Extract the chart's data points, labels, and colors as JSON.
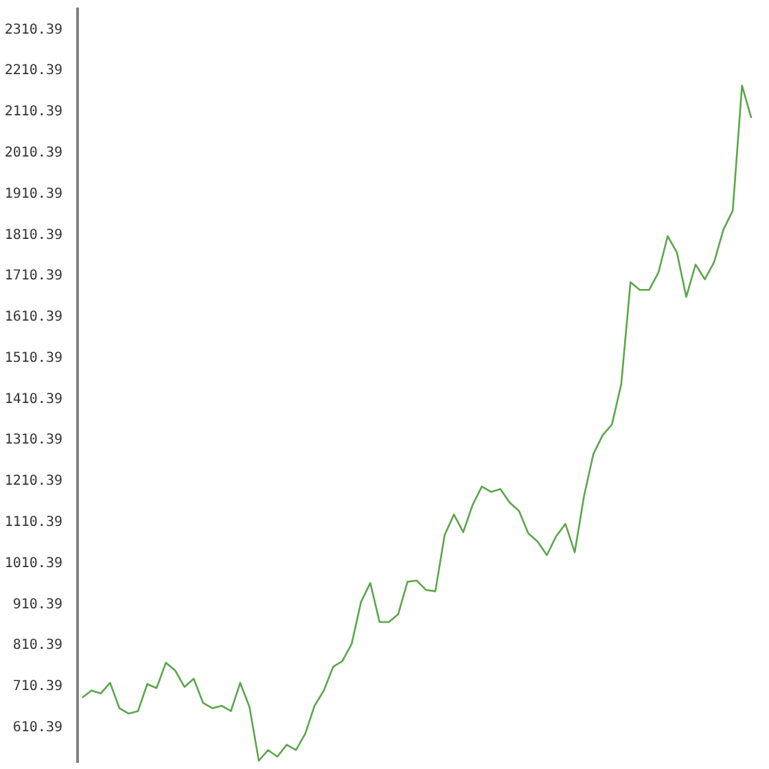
{
  "chart_data": {
    "type": "line",
    "categories": [
      null,
      null,
      null,
      null,
      null,
      null,
      null,
      null,
      null,
      null,
      null,
      null,
      null,
      null,
      null,
      null,
      null,
      null,
      null,
      null,
      null,
      null,
      null,
      null,
      null,
      null,
      null,
      null,
      null,
      null,
      null,
      null,
      null,
      null,
      null,
      null,
      null,
      null,
      null,
      null,
      null,
      null,
      null,
      null,
      null,
      null,
      null,
      null,
      null,
      null,
      null,
      null,
      null,
      null,
      null,
      null,
      null,
      null,
      null,
      null,
      null,
      null,
      null,
      null,
      null,
      null,
      null,
      null,
      null,
      null,
      null,
      null,
      null
    ],
    "series": [
      {
        "color": "#5aa64a",
        "values": [
          679,
          696,
          689,
          715,
          653,
          640,
          646,
          712,
          702,
          764,
          745,
          705,
          725,
          666,
          653,
          659,
          646,
          715,
          656,
          525,
          551,
          535,
          564,
          551,
          591,
          659,
          696,
          754,
          768,
          810,
          912,
          958,
          863,
          863,
          882,
          961,
          964,
          941,
          938,
          1075,
          1125,
          1082,
          1148,
          1193,
          1180,
          1187,
          1154,
          1134,
          1079,
          1059,
          1026,
          1072,
          1102,
          1033,
          1170,
          1272,
          1318,
          1344,
          1442,
          1691,
          1672,
          1672,
          1714,
          1803,
          1763,
          1655,
          1734,
          1698,
          1740,
          1819,
          1865,
          2170,
          2091
        ]
      }
    ],
    "ylim": [
      520,
      2360
    ],
    "yticks": [
      610.39,
      710.39,
      810.39,
      910.39,
      1010.39,
      1110.39,
      1210.39,
      1310.39,
      1410.39,
      1510.39,
      1610.39,
      1710.39,
      1810.39,
      1910.39,
      2010.39,
      2110.39,
      2210.39,
      2310.39
    ],
    "tick_labels": "y",
    "grid": false
  }
}
